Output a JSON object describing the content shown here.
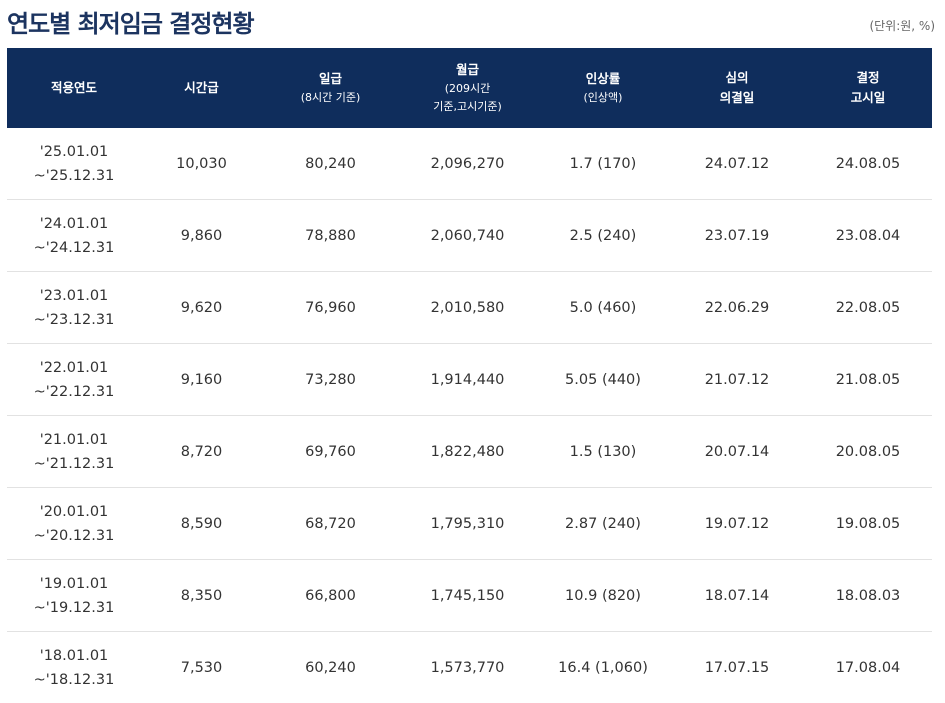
{
  "title": "연도별 최저임금 결정현황",
  "unit": "(단위:원, %)",
  "headers": {
    "period": {
      "line1": "적용연도"
    },
    "hourly": {
      "line1": "시간급"
    },
    "daily": {
      "line1": "일급",
      "sub": "(8시간 기준)"
    },
    "monthly": {
      "line1": "월급",
      "sub1": "(209시간",
      "sub2": "기준,고시기준)"
    },
    "rate": {
      "line1": "인상률",
      "sub": "(인상액)"
    },
    "decision": {
      "line1": "심의",
      "line2": "의결일"
    },
    "notice": {
      "line1": "결정",
      "line2": "고시일"
    }
  },
  "rows": [
    {
      "period_start": "'25.01.01",
      "period_end": "~'25.12.31",
      "hourly": "10,030",
      "daily": "80,240",
      "monthly": "2,096,270",
      "rate": "1.7 (170)",
      "decision": "24.07.12",
      "notice": "24.08.05"
    },
    {
      "period_start": "'24.01.01",
      "period_end": "~'24.12.31",
      "hourly": "9,860",
      "daily": "78,880",
      "monthly": "2,060,740",
      "rate": "2.5 (240)",
      "decision": "23.07.19",
      "notice": "23.08.04"
    },
    {
      "period_start": "'23.01.01",
      "period_end": "~'23.12.31",
      "hourly": "9,620",
      "daily": "76,960",
      "monthly": "2,010,580",
      "rate": "5.0 (460)",
      "decision": "22.06.29",
      "notice": "22.08.05"
    },
    {
      "period_start": "'22.01.01",
      "period_end": "~'22.12.31",
      "hourly": "9,160",
      "daily": "73,280",
      "monthly": "1,914,440",
      "rate": "5.05 (440)",
      "decision": "21.07.12",
      "notice": "21.08.05"
    },
    {
      "period_start": "'21.01.01",
      "period_end": "~'21.12.31",
      "hourly": "8,720",
      "daily": "69,760",
      "monthly": "1,822,480",
      "rate": "1.5 (130)",
      "decision": "20.07.14",
      "notice": "20.08.05"
    },
    {
      "period_start": "'20.01.01",
      "period_end": "~'20.12.31",
      "hourly": "8,590",
      "daily": "68,720",
      "monthly": "1,795,310",
      "rate": "2.87 (240)",
      "decision": "19.07.12",
      "notice": "19.08.05"
    },
    {
      "period_start": "'19.01.01",
      "period_end": "~'19.12.31",
      "hourly": "8,350",
      "daily": "66,800",
      "monthly": "1,745,150",
      "rate": "10.9 (820)",
      "decision": "18.07.14",
      "notice": "18.08.03"
    },
    {
      "period_start": "'18.01.01",
      "period_end": "~'18.12.31",
      "hourly": "7,530",
      "daily": "60,240",
      "monthly": "1,573,770",
      "rate": "16.4 (1,060)",
      "decision": "17.07.15",
      "notice": "17.08.04"
    }
  ]
}
